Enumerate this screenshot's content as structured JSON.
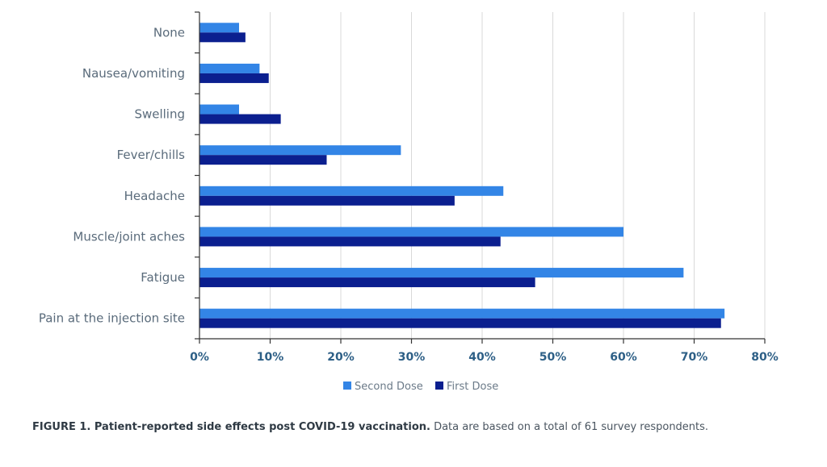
{
  "chart_data": {
    "type": "bar",
    "orientation": "horizontal",
    "categories": [
      "None",
      "Nausea/vomiting",
      "Swelling",
      "Fever/chills",
      "Headache",
      "Muscle/joint aches",
      "Fatigue",
      "Pain at the injection site"
    ],
    "series": [
      {
        "name": "Second Dose",
        "color": "#3385e6",
        "values": [
          5.6,
          8.5,
          5.6,
          28.5,
          43.0,
          60.0,
          68.5,
          74.3
        ]
      },
      {
        "name": "First Dose",
        "color": "#0b1f8f",
        "values": [
          6.5,
          9.8,
          11.5,
          18.0,
          36.1,
          42.6,
          47.5,
          73.8
        ]
      }
    ],
    "xlim": [
      0,
      80
    ],
    "xticks": [
      "0%",
      "10%",
      "20%",
      "30%",
      "40%",
      "50%",
      "60%",
      "70%",
      "80%"
    ],
    "grid": "vertical",
    "legend": "bottom-center"
  },
  "caption": {
    "bold": "FIGURE 1. Patient-reported side effects post COVID-19 vaccination.",
    "text": " Data are based on a total of 61 survey respondents."
  }
}
